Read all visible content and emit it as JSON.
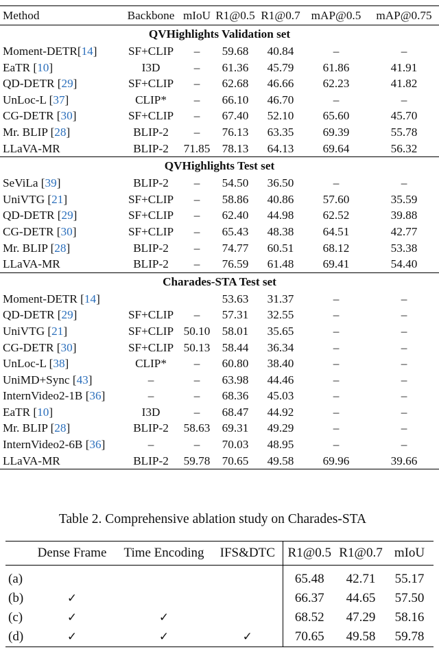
{
  "table1": {
    "headers": [
      "Method",
      "Backbone",
      "mIoU",
      "R1@0.5",
      "R1@0.7",
      "mAP@0.5",
      "mAP@0.75"
    ],
    "sections": [
      {
        "title": "QVHighlights Validation set",
        "rows": [
          {
            "method": "Moment-DETR",
            "ref": "14",
            "ref_space": false,
            "backbone": "SF+CLIP",
            "values": [
              "–",
              "59.68",
              "40.84",
              "–",
              "–"
            ],
            "bold": false
          },
          {
            "method": "EaTR",
            "ref": "10",
            "ref_space": true,
            "backbone": "I3D",
            "values": [
              "–",
              "61.36",
              "45.79",
              "61.86",
              "41.91"
            ],
            "bold": false
          },
          {
            "method": "QD-DETR",
            "ref": "29",
            "ref_space": true,
            "backbone": "SF+CLIP",
            "values": [
              "–",
              "62.68",
              "46.66",
              "62.23",
              "41.82"
            ],
            "bold": false
          },
          {
            "method": "UnLoc-L",
            "ref": "37",
            "ref_space": true,
            "backbone": "CLIP*",
            "values": [
              "–",
              "66.10",
              "46.70",
              "–",
              "–"
            ],
            "bold": false
          },
          {
            "method": "CG-DETR",
            "ref": "30",
            "ref_space": true,
            "backbone": "SF+CLIP",
            "values": [
              "–",
              "67.40",
              "52.10",
              "65.60",
              "45.70"
            ],
            "bold": false
          },
          {
            "method": "Mr. BLIP",
            "ref": "28",
            "ref_space": true,
            "backbone": "BLIP-2",
            "values": [
              "–",
              "76.13",
              "63.35",
              "69.39",
              "55.78"
            ],
            "bold": false
          },
          {
            "method": "LLaVA-MR",
            "ref": "",
            "ref_space": false,
            "backbone": "BLIP-2",
            "values": [
              "71.85",
              "78.13",
              "64.13",
              "69.64",
              "56.32"
            ],
            "bold": true
          }
        ]
      },
      {
        "title": "QVHighlights Test set",
        "rows": [
          {
            "method": "SeViLa",
            "ref": "39",
            "ref_space": true,
            "backbone": "BLIP-2",
            "values": [
              "–",
              "54.50",
              "36.50",
              "–",
              "–"
            ],
            "bold": false
          },
          {
            "method": "UniVTG",
            "ref": "21",
            "ref_space": true,
            "backbone": "SF+CLIP",
            "values": [
              "–",
              "58.86",
              "40.86",
              "57.60",
              "35.59"
            ],
            "bold": false
          },
          {
            "method": "QD-DETR",
            "ref": "29",
            "ref_space": true,
            "backbone": "SF+CLIP",
            "values": [
              "–",
              "62.40",
              "44.98",
              "62.52",
              "39.88"
            ],
            "bold": false
          },
          {
            "method": "CG-DETR",
            "ref": "30",
            "ref_space": true,
            "backbone": "SF+CLIP",
            "values": [
              "–",
              "65.43",
              "48.38",
              "64.51",
              "42.77"
            ],
            "bold": false
          },
          {
            "method": "Mr. BLIP",
            "ref": "28",
            "ref_space": true,
            "backbone": "BLIP-2",
            "values": [
              "–",
              "74.77",
              "60.51",
              "68.12",
              "53.38"
            ],
            "bold": false
          },
          {
            "method": "LLaVA-MR",
            "ref": "",
            "ref_space": false,
            "backbone": "BLIP-2",
            "values": [
              "–",
              "76.59",
              "61.48",
              "69.41",
              "54.40"
            ],
            "bold": true
          }
        ]
      },
      {
        "title": "Charades-STA Test set",
        "rows": [
          {
            "method": "Moment-DETR",
            "ref": "14",
            "ref_space": true,
            "backbone": "",
            "values": [
              "",
              "53.63",
              "31.37",
              "–",
              "–"
            ],
            "bold": false
          },
          {
            "method": "QD-DETR",
            "ref": "29",
            "ref_space": true,
            "backbone": "SF+CLIP",
            "values": [
              "–",
              "57.31",
              "32.55",
              "–",
              "–"
            ],
            "bold": false
          },
          {
            "method": "UniVTG",
            "ref": "21",
            "ref_space": true,
            "backbone": "SF+CLIP",
            "values": [
              "50.10",
              "58.01",
              "35.65",
              "–",
              "–"
            ],
            "bold": false
          },
          {
            "method": "CG-DETR",
            "ref": "30",
            "ref_space": true,
            "backbone": "SF+CLIP",
            "values": [
              "50.13",
              "58.44",
              "36.34",
              "–",
              "–"
            ],
            "bold": false
          },
          {
            "method": "UnLoc-L",
            "ref": "38",
            "ref_space": true,
            "backbone": "CLIP*",
            "values": [
              "–",
              "60.80",
              "38.40",
              "–",
              "–"
            ],
            "bold": false
          },
          {
            "method": "UniMD+Sync",
            "ref": "43",
            "ref_space": true,
            "backbone": "–",
            "values": [
              "–",
              "63.98",
              "44.46",
              "–",
              "–"
            ],
            "bold": false
          },
          {
            "method": "InternVideo2-1B",
            "ref": "36",
            "ref_space": true,
            "backbone": "–",
            "values": [
              "–",
              "68.36",
              "45.03",
              "–",
              "–"
            ],
            "bold": false
          },
          {
            "method": "EaTR",
            "ref": "10",
            "ref_space": true,
            "backbone": "I3D",
            "values": [
              "–",
              "68.47",
              "44.92",
              "–",
              "–"
            ],
            "bold": false
          },
          {
            "method": "Mr. BLIP",
            "ref": "28",
            "ref_space": true,
            "backbone": "BLIP-2",
            "values": [
              "58.63",
              "69.31",
              "49.29",
              "–",
              "–"
            ],
            "bold": false
          },
          {
            "method": "InternVideo2-6B",
            "ref": "36",
            "ref_space": true,
            "backbone": "–",
            "values": [
              "–",
              "70.03",
              "48.95",
              "–",
              "–"
            ],
            "bold": false
          },
          {
            "method": "LLaVA-MR",
            "ref": "",
            "ref_space": false,
            "backbone": "BLIP-2",
            "values": [
              "59.78",
              "70.65",
              "49.58",
              "69.96",
              "39.66"
            ],
            "bold": true
          }
        ]
      }
    ]
  },
  "table2": {
    "caption": "Table 2. Comprehensive ablation study on Charades-STA",
    "headers": [
      "",
      "Dense Frame",
      "Time Encoding",
      "IFS&DTC",
      "R1@0.5",
      "R1@0.7",
      "mIoU"
    ],
    "check_mark": "✓",
    "rows": [
      {
        "label": "(a)",
        "dense_frame": false,
        "time_encoding": false,
        "ifs_dtc": false,
        "values": [
          "65.48",
          "42.71",
          "55.17"
        ],
        "bold": false
      },
      {
        "label": "(b)",
        "dense_frame": true,
        "time_encoding": false,
        "ifs_dtc": false,
        "values": [
          "66.37",
          "44.65",
          "57.50"
        ],
        "bold": false
      },
      {
        "label": "(c)",
        "dense_frame": true,
        "time_encoding": true,
        "ifs_dtc": false,
        "values": [
          "68.52",
          "47.29",
          "58.16"
        ],
        "bold": false
      },
      {
        "label": "(d)",
        "dense_frame": true,
        "time_encoding": true,
        "ifs_dtc": true,
        "values": [
          "70.65",
          "49.58",
          "59.78"
        ],
        "bold": true
      }
    ]
  }
}
